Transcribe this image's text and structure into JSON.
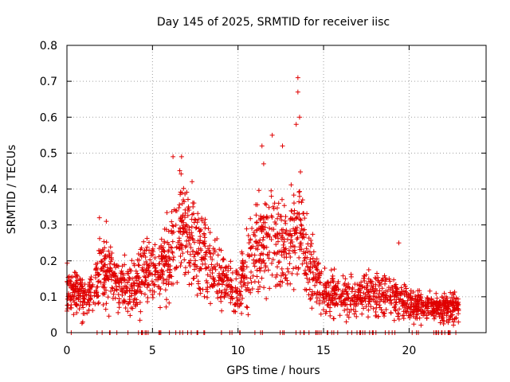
{
  "chart_data": {
    "type": "scatter",
    "title": "Day 145 of 2025, SRMTID for receiver iisc",
    "xlabel": "GPS time / hours",
    "ylabel": "SRMTID / TECUs",
    "xlim": [
      0,
      24.5
    ],
    "ylim": [
      0,
      0.8
    ],
    "xticks": [
      0,
      5,
      10,
      15,
      20
    ],
    "xtick_labels": [
      "0",
      "5",
      "10",
      "15",
      "20"
    ],
    "yticks": [
      0,
      0.1,
      0.2,
      0.3,
      0.4,
      0.5,
      0.6,
      0.7,
      0.8
    ],
    "ytick_labels": [
      "0",
      "0.1",
      "0.2",
      "0.3",
      "0.4",
      "0.5",
      "0.6",
      "0.7",
      "0.8"
    ],
    "grid": true,
    "marker": "plus",
    "color": "#e00000",
    "series": [
      {
        "name": "SRMTID",
        "profile": {
          "x": [
            0.0,
            0.5,
            1.0,
            1.5,
            2.0,
            2.5,
            3.0,
            3.5,
            4.0,
            4.5,
            5.0,
            5.5,
            6.0,
            6.5,
            7.0,
            7.5,
            8.0,
            8.5,
            9.0,
            9.5,
            10.0,
            10.5,
            11.0,
            11.5,
            12.0,
            12.5,
            13.0,
            13.5,
            14.0,
            14.5,
            15.0,
            15.5,
            16.0,
            16.5,
            17.0,
            17.5,
            18.0,
            18.5,
            19.0,
            19.5,
            20.0,
            20.5,
            21.0,
            21.5,
            22.0,
            22.5,
            22.9
          ],
          "y": [
            0.12,
            0.11,
            0.09,
            0.12,
            0.16,
            0.17,
            0.14,
            0.13,
            0.12,
            0.16,
            0.17,
            0.18,
            0.22,
            0.27,
            0.28,
            0.24,
            0.22,
            0.18,
            0.15,
            0.13,
            0.12,
            0.18,
            0.22,
            0.25,
            0.27,
            0.24,
            0.25,
            0.3,
            0.2,
            0.16,
            0.12,
            0.11,
            0.1,
            0.1,
            0.1,
            0.11,
            0.11,
            0.1,
            0.11,
            0.09,
            0.08,
            0.08,
            0.07,
            0.07,
            0.07,
            0.07,
            0.08
          ]
        },
        "count": 2200,
        "peaks": [
          {
            "x": 1.9,
            "y": 0.32
          },
          {
            "x": 2.3,
            "y": 0.31
          },
          {
            "x": 6.2,
            "y": 0.49
          },
          {
            "x": 6.7,
            "y": 0.49
          },
          {
            "x": 11.4,
            "y": 0.52
          },
          {
            "x": 11.5,
            "y": 0.47
          },
          {
            "x": 12.0,
            "y": 0.55
          },
          {
            "x": 12.6,
            "y": 0.52
          },
          {
            "x": 13.5,
            "y": 0.71
          },
          {
            "x": 13.5,
            "y": 0.67
          },
          {
            "x": 13.6,
            "y": 0.6
          },
          {
            "x": 13.4,
            "y": 0.58
          },
          {
            "x": 19.4,
            "y": 0.25
          }
        ]
      }
    ]
  }
}
